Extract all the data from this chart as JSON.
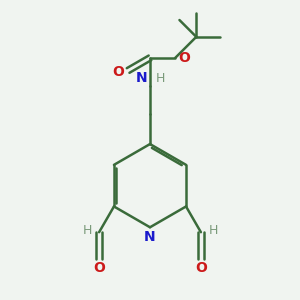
{
  "bg_color": "#f0f4f0",
  "bond_color": "#3a6b3a",
  "N_color": "#1a1acc",
  "O_color": "#cc1a1a",
  "H_color": "#7a9a7a",
  "line_width": 1.8,
  "fig_size": [
    3.0,
    3.0
  ],
  "dpi": 100,
  "xlim": [
    0,
    10
  ],
  "ylim": [
    0,
    10
  ]
}
